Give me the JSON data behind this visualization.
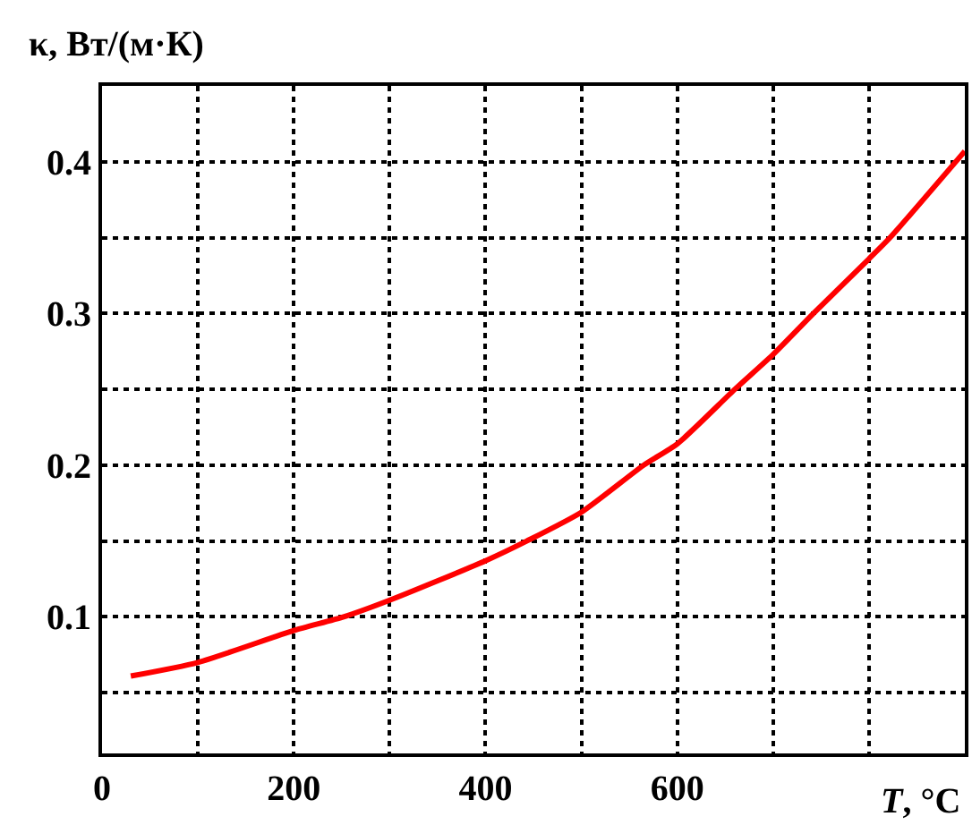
{
  "chart_data": {
    "type": "line",
    "ylabel": "κ, Вт/(м·К)",
    "xlabel": "T, °C",
    "x": [
      30,
      100,
      200,
      252,
      300,
      400,
      443,
      500,
      565,
      600,
      660,
      700,
      742,
      800,
      822,
      900
    ],
    "series": [
      {
        "color": "#ff0000",
        "values": [
          0.061,
          0.07,
          0.091,
          0.1,
          0.111,
          0.137,
          0.15,
          0.169,
          0.2,
          0.214,
          0.25,
          0.273,
          0.3,
          0.336,
          0.35,
          0.407
        ]
      }
    ],
    "xlim": [
      0,
      900
    ],
    "xticks": [
      0,
      {
        "value": 100,
        "label": null
      },
      200,
      {
        "value": 300,
        "label": null
      },
      400,
      {
        "value": 500,
        "label": null
      },
      600,
      {
        "value": 700,
        "label": null
      },
      {
        "value": 800,
        "label": null
      }
    ],
    "ylim": [
      0.01,
      0.45
    ],
    "yticks": [
      {
        "value": 0.05,
        "label": null
      },
      0.1,
      {
        "value": 0.15,
        "label": null
      },
      0.2,
      {
        "value": 0.25,
        "label": null
      },
      0.3,
      {
        "value": 0.35,
        "label": null
      },
      0.4
    ],
    "grid": true,
    "marker": "none",
    "line_style": "solid"
  }
}
